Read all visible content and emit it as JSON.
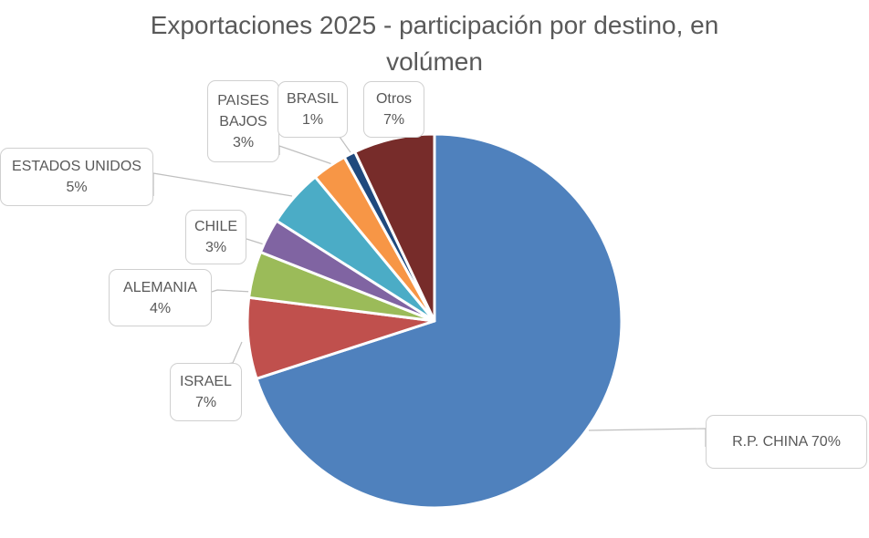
{
  "chart_data": {
    "type": "pie",
    "title": "Exportaciones 2025 - participación por destino, en volúmen",
    "categories": [
      "R.P. CHINA",
      "ISRAEL",
      "ALEMANIA",
      "CHILE",
      "ESTADOS UNIDOS",
      "PAISES BAJOS",
      "BRASIL",
      "Otros"
    ],
    "values": [
      70,
      7,
      4,
      3,
      5,
      3,
      1,
      7
    ],
    "labels": [
      "70%",
      "7%",
      "4%",
      "3%",
      "5%",
      "3%",
      "1%",
      "7%"
    ],
    "colors": [
      "#4F81BD",
      "#C0504D",
      "#9BBB59",
      "#8064A2",
      "#4BACC6",
      "#F79646",
      "#1F497D",
      "#772C2A"
    ],
    "start_angle": "12 o'clock",
    "direction": "clockwise",
    "legend": "none",
    "data_labels": "callouts"
  }
}
